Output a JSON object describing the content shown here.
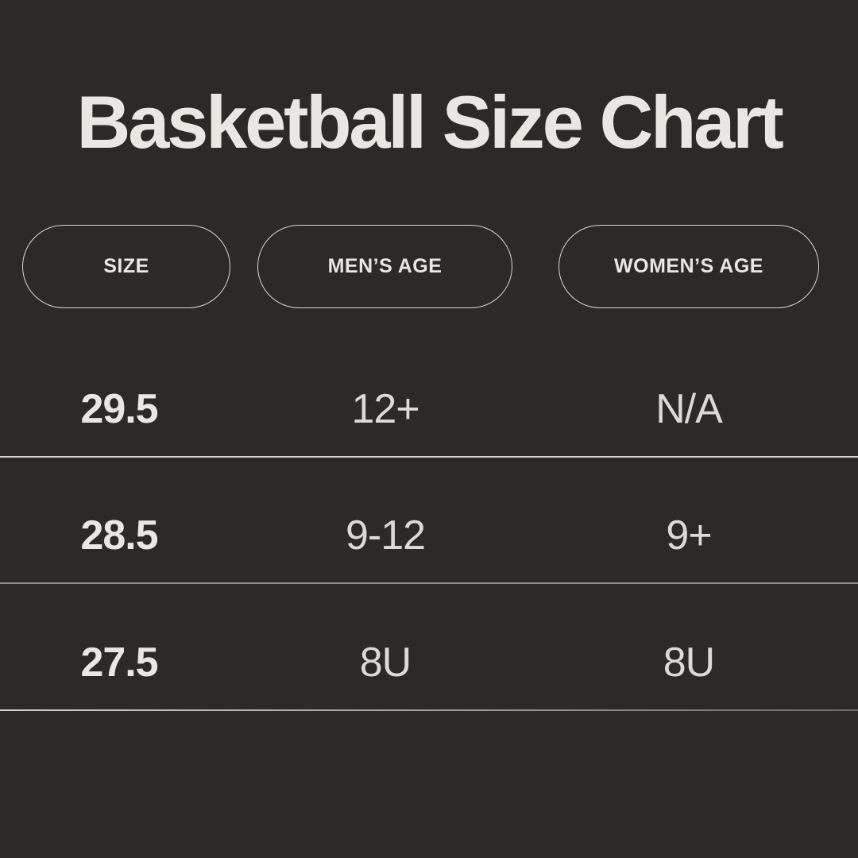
{
  "title": "Basketball Size Chart",
  "table": {
    "columns": [
      {
        "id": "size",
        "label": "SIZE"
      },
      {
        "id": "mens_age",
        "label": "MEN’S AGE"
      },
      {
        "id": "womens_age",
        "label": "WOMEN’S AGE"
      }
    ],
    "rows": [
      {
        "size": "29.5",
        "mens_age": "12+",
        "womens_age": "N/A"
      },
      {
        "size": "28.5",
        "mens_age": "9-12",
        "womens_age": "9+"
      },
      {
        "size": "27.5",
        "mens_age": "8U",
        "womens_age": "8U"
      }
    ]
  },
  "chart_data": {
    "type": "table",
    "title": "Basketball Size Chart",
    "columns": [
      "SIZE",
      "MEN’S AGE",
      "WOMEN’S AGE"
    ],
    "rows": [
      [
        "29.5",
        "12+",
        "N/A"
      ],
      [
        "28.5",
        "9-12",
        "9+"
      ],
      [
        "27.5",
        "8U",
        "8U"
      ]
    ]
  },
  "colors": {
    "bg": "#2b2a29",
    "cream": "#e9e7e1",
    "data-text": "#dcdad4",
    "pill-border": "#d9d7d1",
    "line-bright": "#d6d4ce",
    "line-gray": "#8b8a85",
    "line-grad-end": "#6f6d69"
  }
}
